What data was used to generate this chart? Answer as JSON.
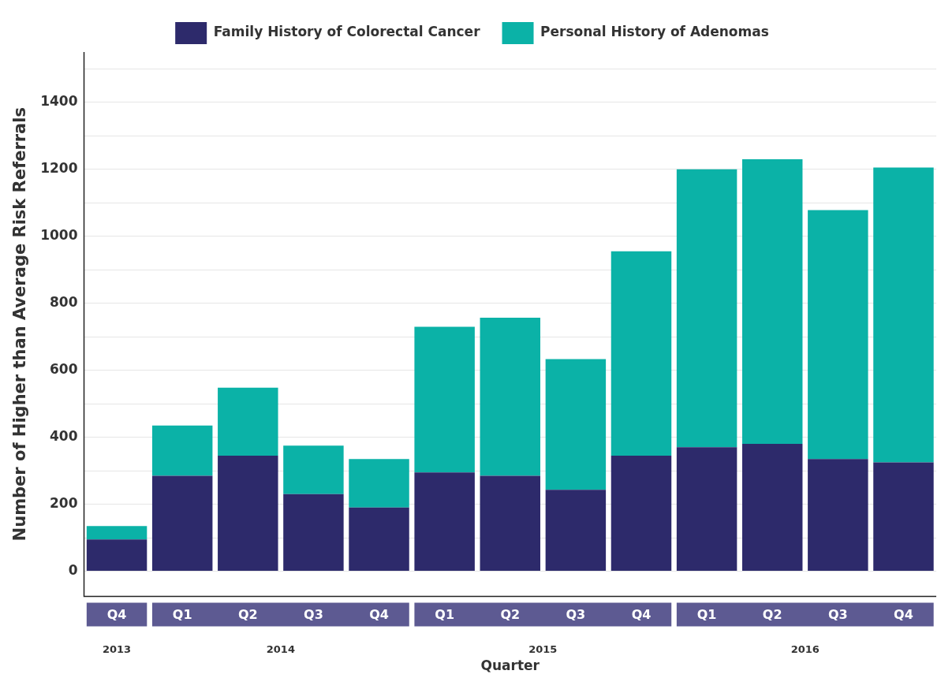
{
  "chart_data": {
    "type": "bar",
    "stacked": true,
    "xlabel": "Quarter",
    "ylabel": "Number of Higher than Average Risk Referrals",
    "categories": [
      "Q4",
      "Q1",
      "Q2",
      "Q3",
      "Q4",
      "Q1",
      "Q2",
      "Q3",
      "Q4",
      "Q1",
      "Q2",
      "Q3",
      "Q4"
    ],
    "series": [
      {
        "name": "Family History of Colorectal Cancer",
        "color": "#2d2a6b",
        "values": [
          95,
          285,
          345,
          230,
          190,
          295,
          285,
          243,
          345,
          370,
          380,
          335,
          325
        ]
      },
      {
        "name": "Personal History of Adenomas",
        "color": "#0bb2a7",
        "values": [
          40,
          150,
          203,
          145,
          145,
          435,
          472,
          390,
          610,
          830,
          850,
          743,
          880
        ]
      }
    ],
    "annotations": [
      "2013",
      "2014",
      "2015",
      "2016"
    ],
    "ylim": [
      -75,
      1550
    ],
    "yticks": [
      0,
      {
        "value": 100,
        "label": null
      },
      200,
      {
        "value": 300,
        "label": null
      },
      400,
      {
        "value": 500,
        "label": null
      },
      600,
      {
        "value": 700,
        "label": null
      },
      800,
      {
        "value": 900,
        "label": null
      },
      1000,
      {
        "value": 1100,
        "label": null
      },
      1200,
      {
        "value": 1300,
        "label": null
      },
      1400,
      {
        "value": 1500,
        "label": null
      }
    ],
    "grid": "y",
    "legend": "top"
  }
}
